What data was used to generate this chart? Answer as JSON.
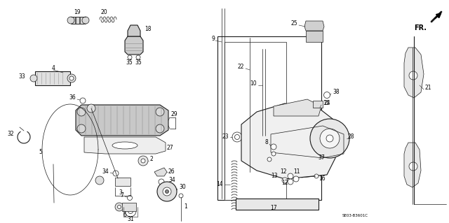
{
  "bg_color": "#ffffff",
  "diagram_ref": "SE03-B3601C",
  "fig_width": 6.4,
  "fig_height": 3.19,
  "dpi": 100,
  "label_fs": 5.5,
  "line_color": "#1a1a1a"
}
